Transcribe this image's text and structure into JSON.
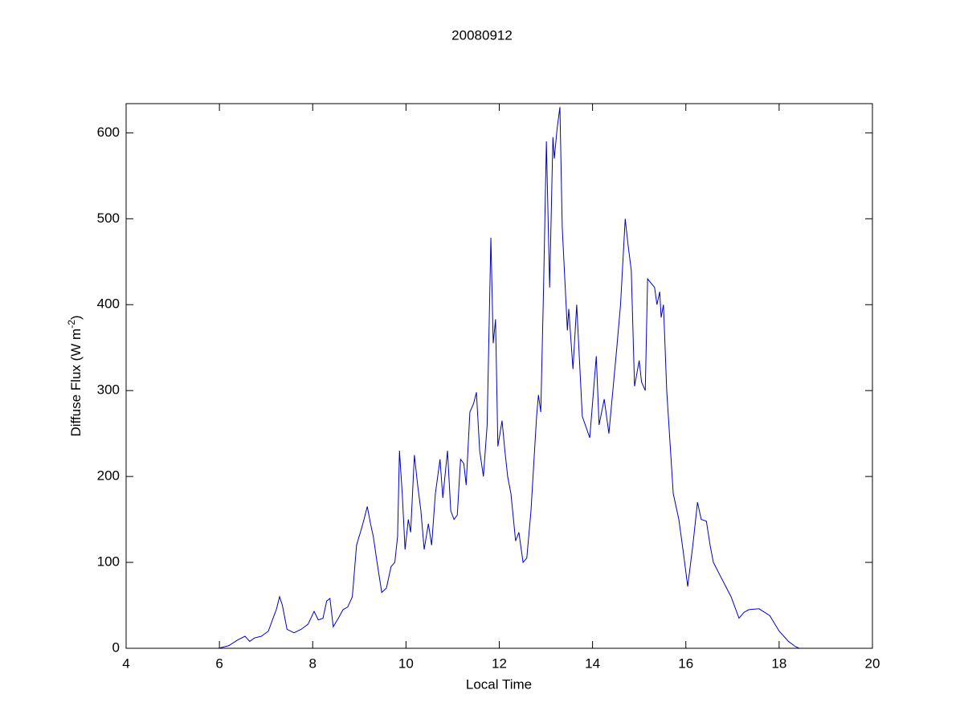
{
  "chart_data": {
    "type": "line",
    "title": "20080912",
    "xlabel": "Local Time",
    "ylabel_parts": [
      "Diffuse Flux (W m",
      "-2",
      ")"
    ],
    "xlim": [
      4,
      20
    ],
    "ylim": [
      0,
      634
    ],
    "xticks": [
      4,
      6,
      8,
      10,
      12,
      14,
      16,
      18,
      20
    ],
    "yticks": [
      0,
      100,
      200,
      300,
      400,
      500,
      600
    ],
    "grid": false,
    "series": [
      {
        "color": "#0000c8",
        "x": [
          5.98,
          6.2,
          6.4,
          6.55,
          6.65,
          6.75,
          6.9,
          7.05,
          7.15,
          7.22,
          7.29,
          7.35,
          7.45,
          7.6,
          7.75,
          7.9,
          8.03,
          8.12,
          8.22,
          8.3,
          8.37,
          8.44,
          8.55,
          8.65,
          8.75,
          8.85,
          8.94,
          9.05,
          9.1,
          9.17,
          9.24,
          9.3,
          9.38,
          9.48,
          9.58,
          9.68,
          9.76,
          9.82,
          9.86,
          9.92,
          9.98,
          10.05,
          10.1,
          10.18,
          10.25,
          10.32,
          10.39,
          10.48,
          10.55,
          10.63,
          10.73,
          10.79,
          10.89,
          10.96,
          11.03,
          11.1,
          11.17,
          11.24,
          11.29,
          11.37,
          11.45,
          11.51,
          11.58,
          11.66,
          11.74,
          11.82,
          11.87,
          11.92,
          11.97,
          12.06,
          12.12,
          12.18,
          12.25,
          12.35,
          12.42,
          12.51,
          12.59,
          12.68,
          12.8,
          12.84,
          12.89,
          12.95,
          13.01,
          13.08,
          13.15,
          13.18,
          13.24,
          13.3,
          13.35,
          13.46,
          13.49,
          13.58,
          13.66,
          13.78,
          13.94,
          14.08,
          14.14,
          14.25,
          14.35,
          14.52,
          14.6,
          14.7,
          14.76,
          14.83,
          14.9,
          15.0,
          15.05,
          15.13,
          15.18,
          15.33,
          15.38,
          15.44,
          15.47,
          15.52,
          15.59,
          15.66,
          15.73,
          15.85,
          15.95,
          16.04,
          16.15,
          16.25,
          16.33,
          16.44,
          16.52,
          16.59,
          16.76,
          16.97,
          17.14,
          17.25,
          17.35,
          17.57,
          17.8,
          18.0,
          18.2,
          18.35,
          18.43
        ],
        "values": [
          0,
          3,
          10,
          14,
          8,
          12,
          14,
          20,
          35,
          45,
          60,
          50,
          22,
          18,
          22,
          28,
          43,
          33,
          35,
          55,
          58,
          25,
          35,
          45,
          48,
          60,
          120,
          140,
          150,
          165,
          145,
          130,
          100,
          65,
          70,
          95,
          100,
          130,
          230,
          180,
          115,
          150,
          135,
          225,
          190,
          160,
          115,
          145,
          120,
          180,
          220,
          175,
          230,
          160,
          150,
          155,
          220,
          215,
          190,
          275,
          285,
          298,
          230,
          200,
          260,
          478,
          355,
          383,
          235,
          265,
          230,
          200,
          180,
          125,
          135,
          100,
          105,
          160,
          270,
          295,
          275,
          420,
          590,
          420,
          595,
          570,
          605,
          630,
          490,
          370,
          395,
          325,
          400,
          270,
          245,
          340,
          260,
          290,
          250,
          350,
          400,
          500,
          470,
          440,
          305,
          335,
          310,
          300,
          430,
          420,
          400,
          415,
          385,
          400,
          300,
          240,
          180,
          150,
          110,
          72,
          120,
          170,
          150,
          148,
          120,
          100,
          82,
          60,
          35,
          42,
          45,
          46,
          38,
          20,
          8,
          2,
          0
        ]
      }
    ]
  }
}
